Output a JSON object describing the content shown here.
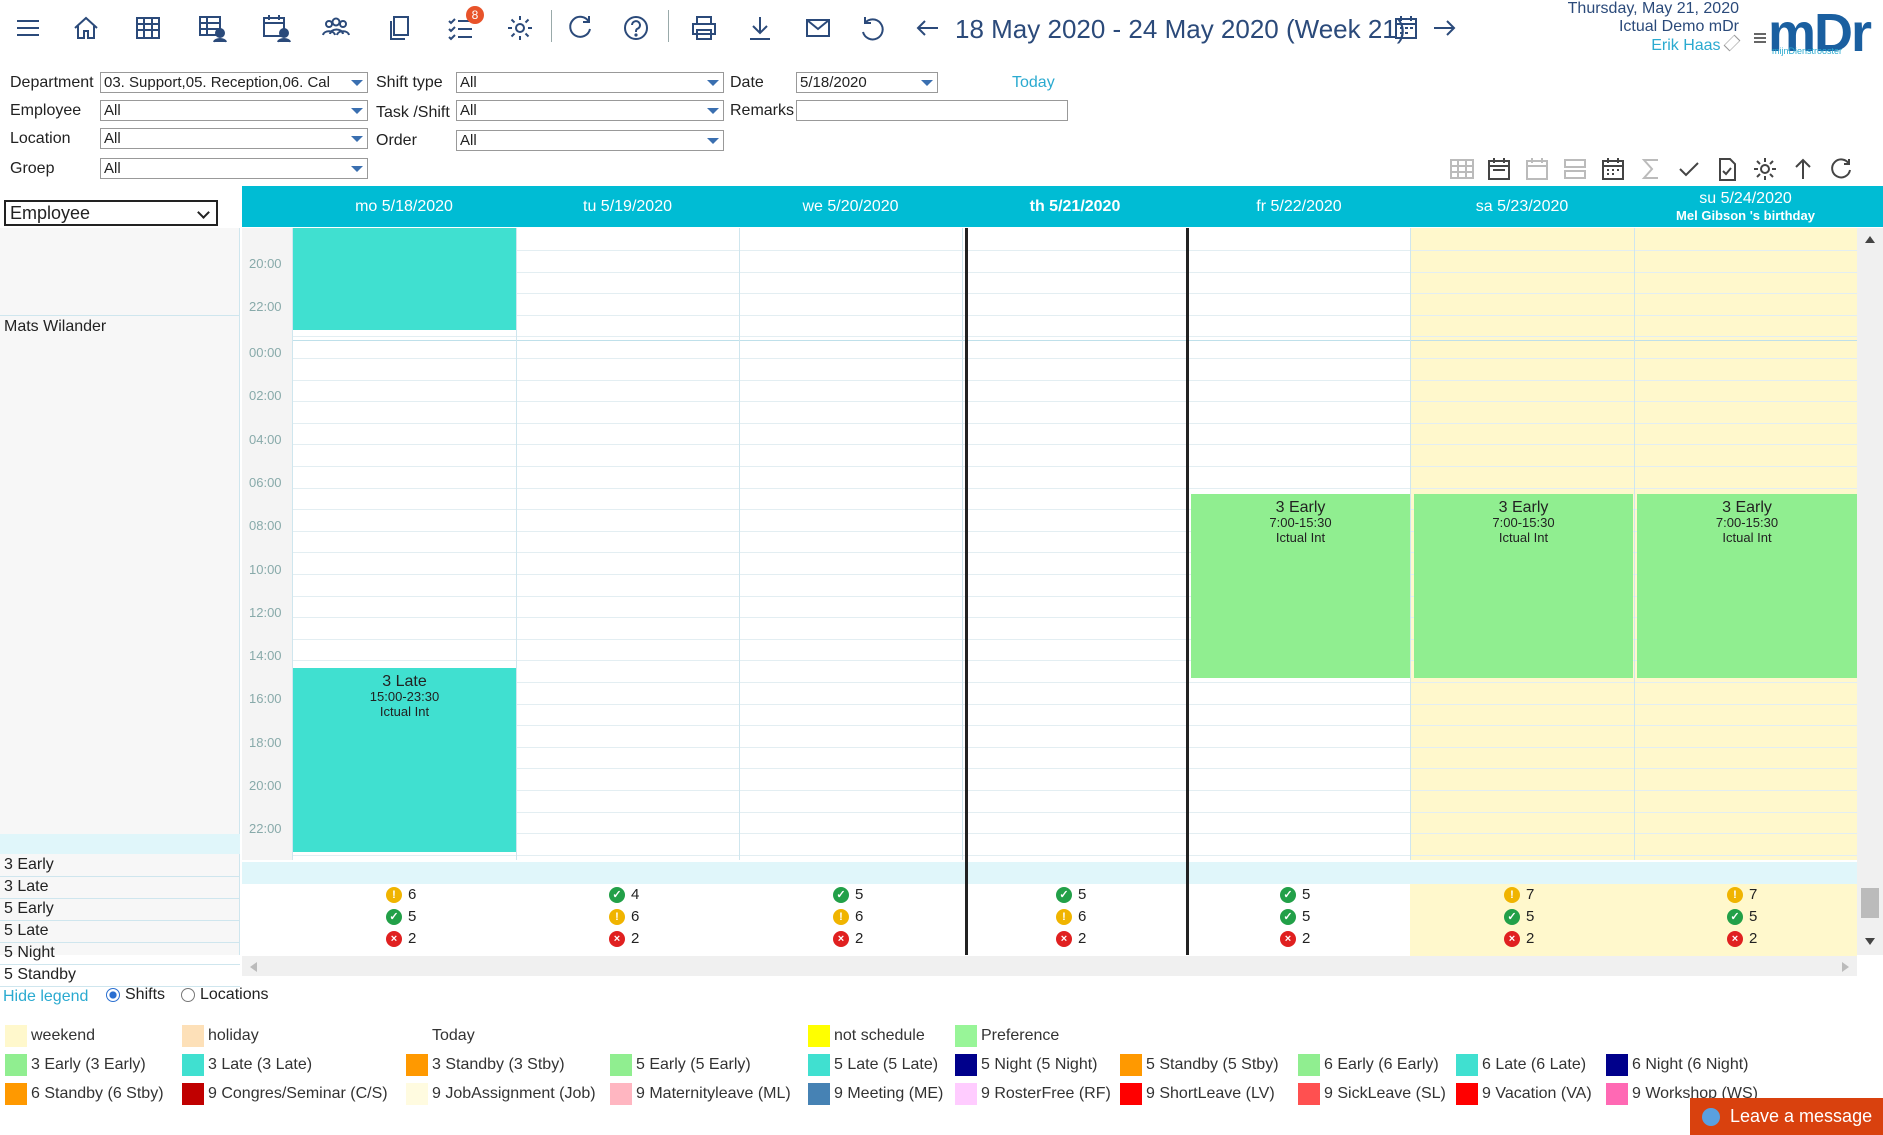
{
  "toolbar": {
    "badge_count": "8",
    "week_title": "18 May 2020 - 24 May 2020 (Week 21)",
    "date_line": "Thursday, May 21, 2020",
    "org": "Ictual Demo mDr",
    "user": "Erik Haas",
    "logo_text": "mDr",
    "logo_sub": "mijnDienstrooster"
  },
  "filters": {
    "department_label": "Department",
    "department_value": "03. Support,05. Reception,06. Cal",
    "employee_label": "Employee",
    "employee_value": "All",
    "location_label": "Location",
    "location_value": "All",
    "groep_label": "Groep",
    "groep_value": "All",
    "shifttype_label": "Shift type",
    "shifttype_value": "All",
    "taskshift_label": "Task /Shift",
    "taskshift_value": "All",
    "order_label": "Order",
    "order_value": "All",
    "date_label": "Date",
    "date_value": "5/18/2020",
    "remarks_label": "Remarks",
    "today_link": "Today"
  },
  "grid": {
    "view_select": "Employee",
    "days": [
      {
        "label": "mo 5/18/2020",
        "sub": ""
      },
      {
        "label": "tu 5/19/2020",
        "sub": ""
      },
      {
        "label": "we 5/20/2020",
        "sub": ""
      },
      {
        "label": "th 5/21/2020",
        "sub": ""
      },
      {
        "label": "fr 5/22/2020",
        "sub": ""
      },
      {
        "label": "sa 5/23/2020",
        "sub": ""
      },
      {
        "label": "su 5/24/2020",
        "sub": "Mel Gibson 's birthday"
      }
    ],
    "times_top": [
      "20:00",
      "22:00"
    ],
    "times": [
      "00:00",
      "02:00",
      "04:00",
      "06:00",
      "08:00",
      "10:00",
      "12:00",
      "14:00",
      "16:00",
      "18:00",
      "20:00",
      "22:00"
    ],
    "employee": "Mats Wilander",
    "shifts": {
      "late": {
        "name": "3 Late",
        "time": "15:00-23:30",
        "loc": "Ictual Int"
      },
      "early": {
        "name": "3 Early",
        "time": "7:00-15:30",
        "loc": "Ictual Int"
      }
    },
    "summary_rows": [
      "3 Early",
      "3 Late",
      "5 Early",
      "5 Late",
      "5 Night",
      "5 Standby"
    ],
    "summary": [
      [
        "6",
        "5",
        "2"
      ],
      [
        "4",
        "6",
        "2"
      ],
      [
        "5",
        "6",
        "2"
      ],
      [
        "5",
        "6",
        "2"
      ],
      [
        "5",
        "5",
        "2"
      ],
      [
        "7",
        "5",
        "2"
      ],
      [
        "7",
        "5",
        "2"
      ]
    ],
    "summary_status": [
      [
        "warn",
        "ok",
        "err"
      ],
      [
        "ok",
        "warn",
        "err"
      ],
      [
        "ok",
        "warn",
        "err"
      ],
      [
        "ok",
        "warn",
        "err"
      ],
      [
        "ok",
        "ok",
        "err"
      ],
      [
        "warn",
        "ok",
        "err"
      ],
      [
        "warn",
        "ok",
        "err"
      ]
    ]
  },
  "legend": {
    "hide_label": "Hide legend",
    "opt_shifts": "Shifts",
    "opt_locations": "Locations",
    "items": [
      {
        "label": "weekend",
        "color": "#fff8cc"
      },
      {
        "label": "holiday",
        "color": "#fde0b8"
      },
      {
        "label": "Today",
        "color": "#ffffff"
      },
      {
        "label": "not schedule",
        "color": "#ffff00"
      },
      {
        "label": "Preference",
        "color": "#98f598"
      },
      {
        "label": "3 Early (3 Early)",
        "color": "#90ee90"
      },
      {
        "label": "3 Late (3 Late)",
        "color": "#40e0d0"
      },
      {
        "label": "3 Standby (3 Stby)",
        "color": "#ff9900"
      },
      {
        "label": "5 Early (5 Early)",
        "color": "#90ee90"
      },
      {
        "label": "5 Late (5 Late)",
        "color": "#40e0d0"
      },
      {
        "label": "5 Night (5 Night)",
        "color": "#00008b"
      },
      {
        "label": "5 Standby (5 Stby)",
        "color": "#ff9900"
      },
      {
        "label": "6 Early (6 Early)",
        "color": "#90ee90"
      },
      {
        "label": "6 Late (6 Late)",
        "color": "#40e0d0"
      },
      {
        "label": "6 Night (6 Night)",
        "color": "#00008b"
      },
      {
        "label": "6 Standby (6 Stby)",
        "color": "#ff9900"
      },
      {
        "label": "9 Congres/Seminar (C/S)",
        "color": "#c00000"
      },
      {
        "label": "9 JobAssignment (Job)",
        "color": "#fffbe0"
      },
      {
        "label": "9 Maternityleave (ML)",
        "color": "#ffb6c1"
      },
      {
        "label": "9 Meeting (ME)",
        "color": "#4682b4"
      },
      {
        "label": "9 RosterFree (RF)",
        "color": "#ffccff"
      },
      {
        "label": "9 ShortLeave (LV)",
        "color": "#ff0000"
      },
      {
        "label": "9 SickLeave (SL)",
        "color": "#ff5050"
      },
      {
        "label": "9 Vacation (VA)",
        "color": "#ff0000"
      },
      {
        "label": "9 Workshop (WS)",
        "color": "#ff69b4"
      }
    ]
  },
  "chat": {
    "label": "Leave a message"
  },
  "colors": {
    "header": "#00bcd4",
    "late": "#40e0d0",
    "early": "#90ee90",
    "weekend": "#fff8cc",
    "accent": "#2b4a7a"
  }
}
